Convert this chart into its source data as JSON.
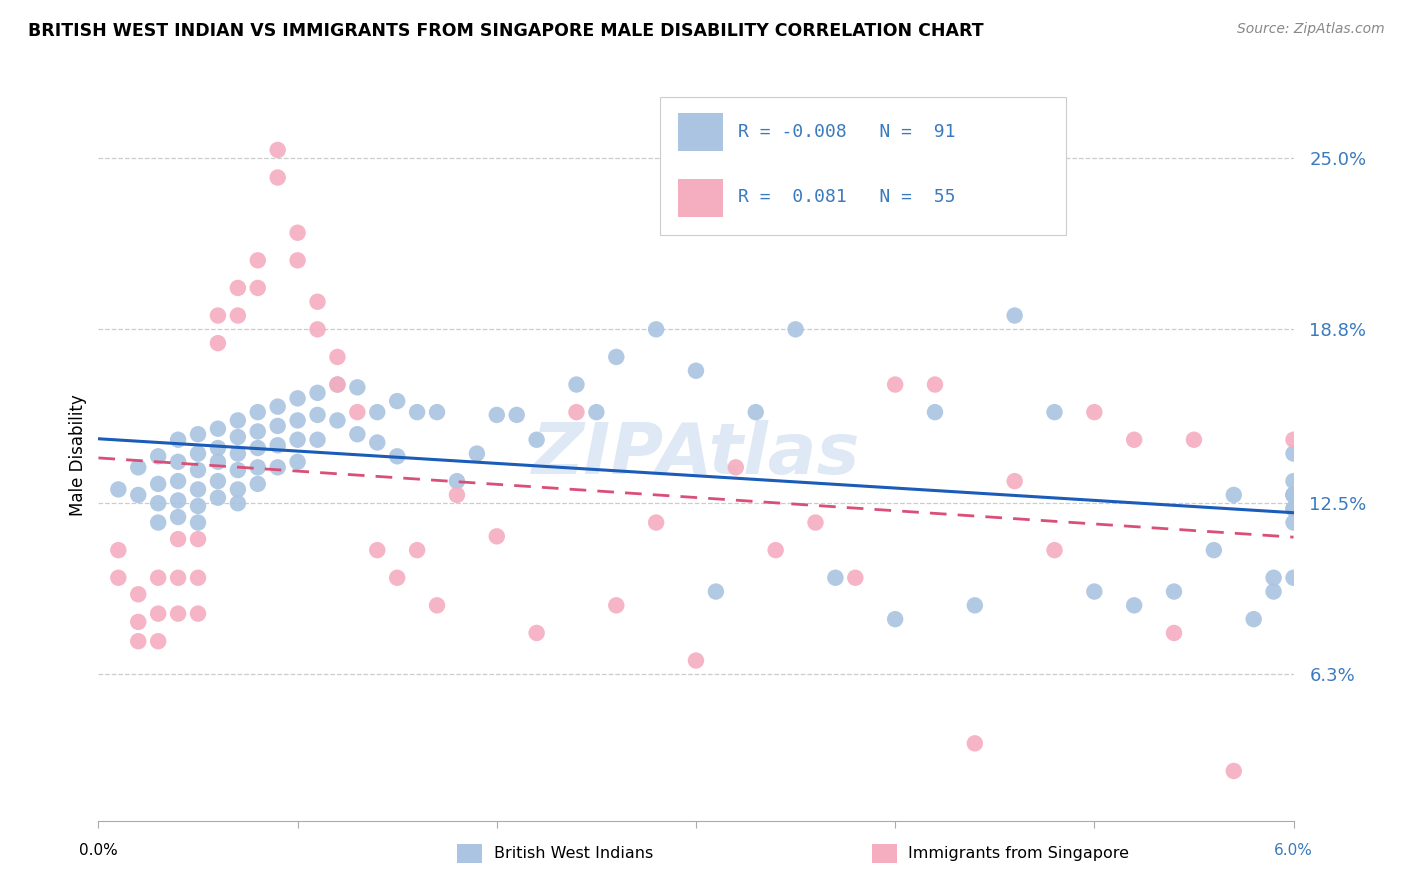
{
  "title": "BRITISH WEST INDIAN VS IMMIGRANTS FROM SINGAPORE MALE DISABILITY CORRELATION CHART",
  "source": "Source: ZipAtlas.com",
  "ylabel": "Male Disability",
  "y_ticks": [
    0.063,
    0.125,
    0.188,
    0.25
  ],
  "y_tick_labels": [
    "6.3%",
    "12.5%",
    "18.8%",
    "25.0%"
  ],
  "xmin": 0.0,
  "xmax": 0.06,
  "ymin": 0.01,
  "ymax": 0.275,
  "legend_labels": [
    "British West Indians",
    "Immigrants from Singapore"
  ],
  "blue_color": "#aac4e2",
  "pink_color": "#f5adc0",
  "trend_blue": "#1a5cb8",
  "trend_pink": "#d94f78",
  "blue_R": -0.008,
  "blue_N": 91,
  "pink_R": 0.081,
  "pink_N": 55,
  "blue_x": [
    0.001,
    0.002,
    0.002,
    0.003,
    0.003,
    0.003,
    0.003,
    0.004,
    0.004,
    0.004,
    0.004,
    0.004,
    0.005,
    0.005,
    0.005,
    0.005,
    0.005,
    0.005,
    0.006,
    0.006,
    0.006,
    0.006,
    0.006,
    0.007,
    0.007,
    0.007,
    0.007,
    0.007,
    0.007,
    0.008,
    0.008,
    0.008,
    0.008,
    0.008,
    0.009,
    0.009,
    0.009,
    0.009,
    0.01,
    0.01,
    0.01,
    0.01,
    0.011,
    0.011,
    0.011,
    0.012,
    0.012,
    0.013,
    0.013,
    0.014,
    0.014,
    0.015,
    0.015,
    0.016,
    0.017,
    0.018,
    0.019,
    0.02,
    0.021,
    0.022,
    0.024,
    0.025,
    0.026,
    0.028,
    0.03,
    0.031,
    0.033,
    0.035,
    0.037,
    0.04,
    0.042,
    0.044,
    0.046,
    0.048,
    0.05,
    0.052,
    0.054,
    0.056,
    0.057,
    0.058,
    0.059,
    0.059,
    0.06,
    0.06,
    0.06,
    0.06,
    0.06,
    0.06,
    0.06,
    0.06,
    0.06
  ],
  "blue_y": [
    0.13,
    0.138,
    0.128,
    0.142,
    0.132,
    0.125,
    0.118,
    0.148,
    0.14,
    0.133,
    0.126,
    0.12,
    0.15,
    0.143,
    0.137,
    0.13,
    0.124,
    0.118,
    0.152,
    0.145,
    0.14,
    0.133,
    0.127,
    0.155,
    0.149,
    0.143,
    0.137,
    0.13,
    0.125,
    0.158,
    0.151,
    0.145,
    0.138,
    0.132,
    0.16,
    0.153,
    0.146,
    0.138,
    0.163,
    0.155,
    0.148,
    0.14,
    0.165,
    0.157,
    0.148,
    0.168,
    0.155,
    0.167,
    0.15,
    0.158,
    0.147,
    0.162,
    0.142,
    0.158,
    0.158,
    0.133,
    0.143,
    0.157,
    0.157,
    0.148,
    0.168,
    0.158,
    0.178,
    0.188,
    0.173,
    0.093,
    0.158,
    0.188,
    0.098,
    0.083,
    0.158,
    0.088,
    0.193,
    0.158,
    0.093,
    0.088,
    0.093,
    0.108,
    0.128,
    0.083,
    0.093,
    0.098,
    0.143,
    0.133,
    0.128,
    0.123,
    0.118,
    0.098,
    0.128,
    0.123,
    0.128
  ],
  "pink_x": [
    0.001,
    0.001,
    0.002,
    0.002,
    0.002,
    0.003,
    0.003,
    0.003,
    0.004,
    0.004,
    0.004,
    0.005,
    0.005,
    0.005,
    0.006,
    0.006,
    0.007,
    0.007,
    0.008,
    0.008,
    0.009,
    0.009,
    0.01,
    0.01,
    0.011,
    0.011,
    0.012,
    0.012,
    0.013,
    0.014,
    0.015,
    0.016,
    0.017,
    0.018,
    0.02,
    0.022,
    0.024,
    0.026,
    0.028,
    0.03,
    0.032,
    0.034,
    0.036,
    0.038,
    0.04,
    0.042,
    0.044,
    0.046,
    0.048,
    0.05,
    0.052,
    0.054,
    0.055,
    0.057,
    0.06
  ],
  "pink_y": [
    0.108,
    0.098,
    0.092,
    0.082,
    0.075,
    0.098,
    0.085,
    0.075,
    0.112,
    0.098,
    0.085,
    0.112,
    0.098,
    0.085,
    0.193,
    0.183,
    0.203,
    0.193,
    0.213,
    0.203,
    0.253,
    0.243,
    0.223,
    0.213,
    0.198,
    0.188,
    0.178,
    0.168,
    0.158,
    0.108,
    0.098,
    0.108,
    0.088,
    0.128,
    0.113,
    0.078,
    0.158,
    0.088,
    0.118,
    0.068,
    0.138,
    0.108,
    0.118,
    0.098,
    0.168,
    0.168,
    0.038,
    0.133,
    0.108,
    0.158,
    0.148,
    0.078,
    0.148,
    0.028,
    0.148
  ]
}
